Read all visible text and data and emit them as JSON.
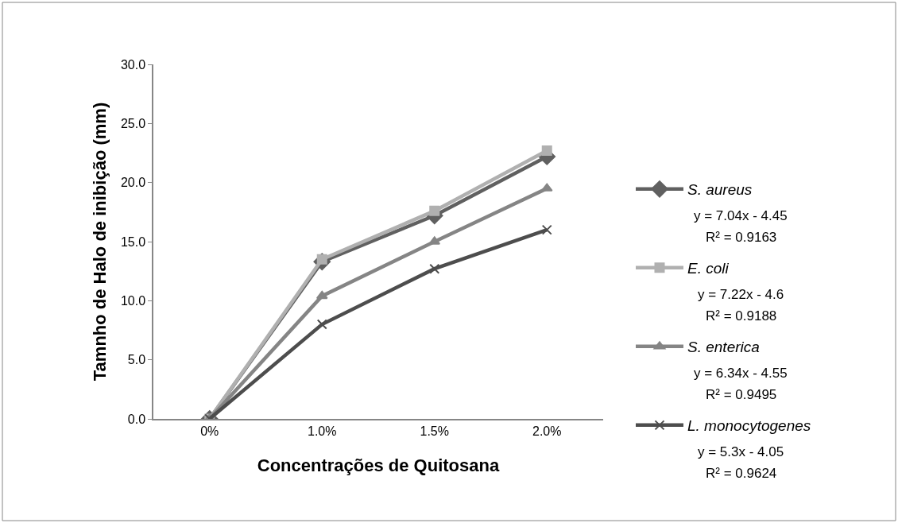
{
  "chart_data": {
    "type": "line",
    "xlabel": "Concentrações de Quitosana",
    "ylabel": "Tamnho de Halo de inibição (mm)",
    "categories": [
      "0%",
      "1.0%",
      "1.5%",
      "2.0%"
    ],
    "series": [
      {
        "name": "S. aureus",
        "color": "#606060",
        "marker": "diamond",
        "values": [
          0,
          13.3,
          17.2,
          22.2
        ]
      },
      {
        "name": "E. coli",
        "color": "#b0b0b0",
        "marker": "square",
        "values": [
          0,
          13.5,
          17.6,
          22.7
        ]
      },
      {
        "name": "S. enterica",
        "color": "#858585",
        "marker": "triangle",
        "values": [
          0,
          10.4,
          15.0,
          19.5
        ]
      },
      {
        "name": "L. monocytogenes",
        "color": "#4d4d4d",
        "marker": "cross",
        "values": [
          0,
          8.0,
          12.7,
          16.0
        ]
      }
    ],
    "annotations": [
      "y = 7.04x - 4.45",
      "R² = 0.9163",
      "y = 7.22x - 4.6",
      "R² = 0.9188",
      "y = 6.34x - 4.55",
      "R² = 0.9495",
      "y = 5.3x - 4.05",
      "R² = 0.9624"
    ],
    "ylim": [
      0,
      30
    ],
    "yticks": [
      {
        "value": 0,
        "label": "0.0"
      },
      {
        "value": 5,
        "label": "5.0"
      },
      {
        "value": 10,
        "label": "10.0"
      },
      {
        "value": 15,
        "label": "15.0"
      },
      {
        "value": 20,
        "label": "20.0"
      },
      {
        "value": 25,
        "label": "25.0"
      },
      {
        "value": 30,
        "label": "30.0"
      }
    ],
    "grid": false,
    "legend": "right",
    "line_style": "solid"
  }
}
